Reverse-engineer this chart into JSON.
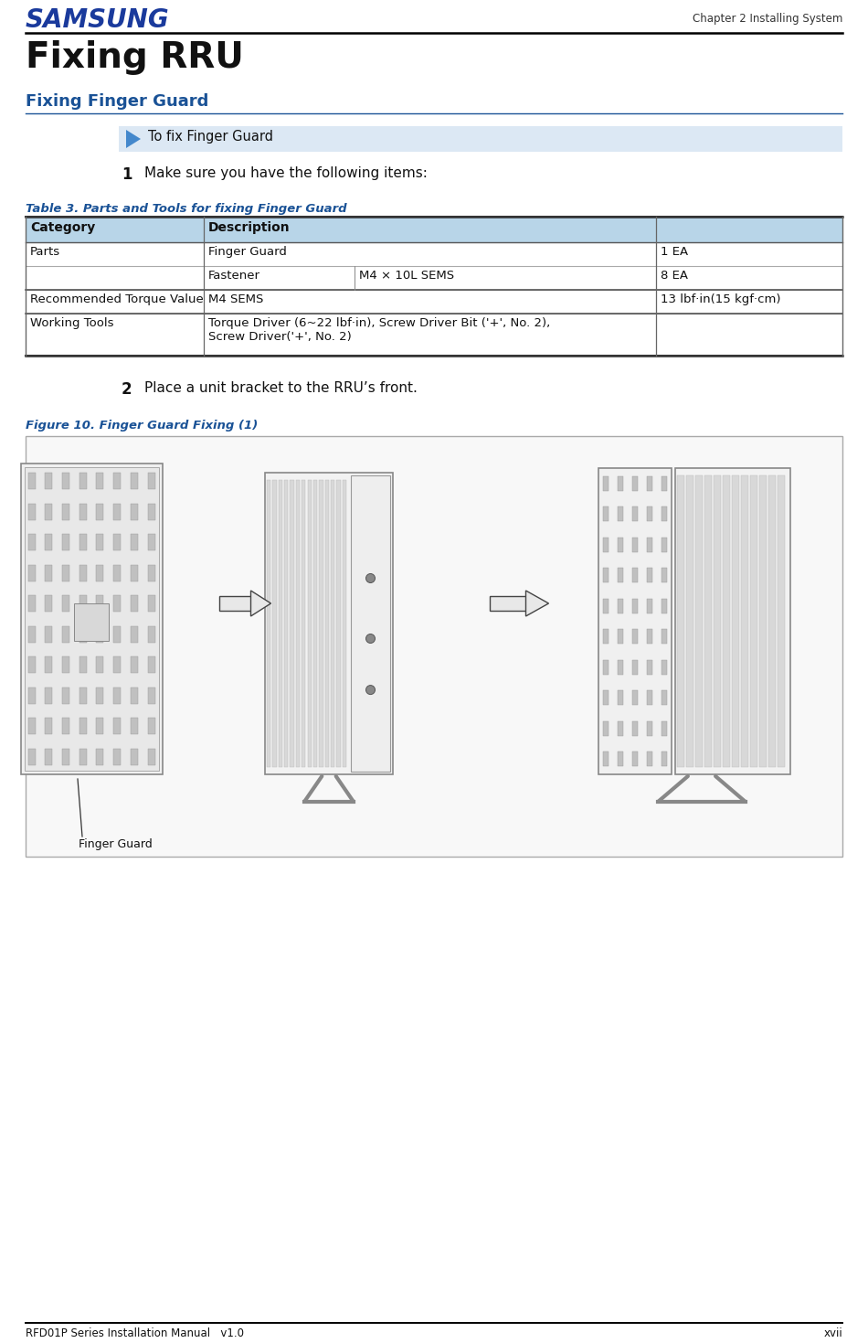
{
  "page_width": 9.5,
  "page_height": 14.69,
  "dpi": 100,
  "bg_color": "#ffffff",
  "samsung_text": "SAMSUNG",
  "samsung_color": "#1a3a9c",
  "header_right": "Chapter 2 Installing System",
  "title_main": "Fixing RRU",
  "title_sub": "Fixing Finger Guard",
  "title_sub_color": "#1a5296",
  "procedure_banner_text": "To fix Finger Guard",
  "procedure_banner_bg": "#dce8f4",
  "step1_num": "1",
  "step1_text": "Make sure you have the following items:",
  "table_title": "Table 3. Parts and Tools for fixing Finger Guard",
  "table_title_color": "#1a5296",
  "table_header_bg": "#b8d5e8",
  "table_header_col1": "Category",
  "table_header_col2": "Description",
  "step2_num": "2",
  "step2_text": "Place a unit bracket to the RRU’s front.",
  "figure_title": "Figure 10. Finger Guard Fixing (1)",
  "figure_title_color": "#1a5296",
  "figure_box_bg": "#f8f8f8",
  "figure_box_border": "#aaaaaa",
  "finger_guard_label": "Finger Guard",
  "footer_left": "RFD01P Series Installation Manual   v1.0",
  "footer_right": "xvii",
  "footer_line_color": "#000000",
  "arrow_fill": "#e8e8e8",
  "arrow_edge": "#444444"
}
